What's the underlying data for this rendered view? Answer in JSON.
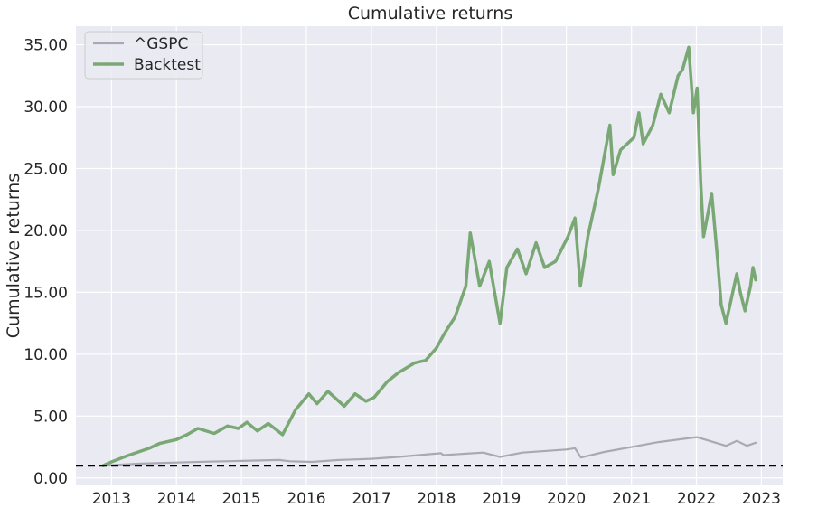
{
  "chart_data": {
    "type": "line",
    "title": "Cumulative returns",
    "xlabel": "",
    "ylabel": "Cumulative returns",
    "x_ticks": [
      "2013",
      "2014",
      "2015",
      "2016",
      "2017",
      "2018",
      "2019",
      "2020",
      "2021",
      "2022",
      "2023"
    ],
    "y_ticks": [
      "0.00",
      "5.00",
      "10.00",
      "15.00",
      "20.00",
      "25.00",
      "30.00",
      "35.00"
    ],
    "xlim": [
      "2012-06-15",
      "2023-05-01"
    ],
    "ylim": [
      -0.6,
      36.5
    ],
    "grid": true,
    "legend_position": "top-left",
    "reference_line": {
      "y": 1.0,
      "style": "dashed",
      "color": "#000000"
    },
    "series": [
      {
        "name": "^GSPC",
        "color": "#a9a9b3",
        "x": [
          "2012-11-15",
          "2013-06-01",
          "2014-01-01",
          "2014-07-01",
          "2015-01-01",
          "2015-08-01",
          "2015-10-01",
          "2016-02-01",
          "2016-07-01",
          "2017-01-01",
          "2017-06-01",
          "2018-01-26",
          "2018-02-09",
          "2018-09-20",
          "2018-12-24",
          "2019-04-30",
          "2019-12-31",
          "2020-02-19",
          "2020-03-23",
          "2020-08-01",
          "2021-01-01",
          "2021-06-01",
          "2022-01-03",
          "2022-06-16",
          "2022-08-16",
          "2022-10-12",
          "2022-11-30"
        ],
        "y": [
          1.0,
          1.15,
          1.25,
          1.32,
          1.38,
          1.45,
          1.35,
          1.3,
          1.45,
          1.55,
          1.7,
          2.0,
          1.85,
          2.05,
          1.7,
          2.05,
          2.3,
          2.4,
          1.65,
          2.1,
          2.5,
          2.9,
          3.3,
          2.6,
          3.0,
          2.6,
          2.85
        ]
      },
      {
        "name": "Backtest",
        "color": "#7aa874",
        "x": [
          "2012-11-15",
          "2013-01-01",
          "2013-04-01",
          "2013-06-01",
          "2013-08-01",
          "2013-10-01",
          "2014-01-01",
          "2014-03-01",
          "2014-05-01",
          "2014-08-01",
          "2014-10-15",
          "2014-12-15",
          "2015-02-01",
          "2015-04-01",
          "2015-06-01",
          "2015-08-20",
          "2015-11-01",
          "2016-01-15",
          "2016-03-01",
          "2016-05-01",
          "2016-08-01",
          "2016-10-01",
          "2016-12-01",
          "2017-01-15",
          "2017-04-01",
          "2017-06-01",
          "2017-09-01",
          "2017-11-01",
          "2018-01-01",
          "2018-02-08",
          "2018-03-01",
          "2018-04-15",
          "2018-06-15",
          "2018-07-10",
          "2018-09-01",
          "2018-10-25",
          "2018-12-24",
          "2019-02-01",
          "2019-04-01",
          "2019-05-20",
          "2019-07-15",
          "2019-09-01",
          "2019-11-01",
          "2020-01-10",
          "2020-02-19",
          "2020-03-20",
          "2020-05-01",
          "2020-07-01",
          "2020-09-02",
          "2020-09-20",
          "2020-11-01",
          "2021-01-15",
          "2021-02-12",
          "2021-03-08",
          "2021-05-01",
          "2021-06-15",
          "2021-08-01",
          "2021-09-20",
          "2021-10-15",
          "2021-11-19",
          "2021-12-15",
          "2022-01-05",
          "2022-01-25",
          "2022-02-10",
          "2022-03-28",
          "2022-05-01",
          "2022-05-20",
          "2022-06-16",
          "2022-08-16",
          "2022-09-05",
          "2022-10-01",
          "2022-11-01",
          "2022-11-15",
          "2022-11-30"
        ],
        "y": [
          1.0,
          1.3,
          1.8,
          2.1,
          2.4,
          2.8,
          3.1,
          3.5,
          4.0,
          3.6,
          4.2,
          4.0,
          4.5,
          3.8,
          4.4,
          3.5,
          5.5,
          6.8,
          6.0,
          7.0,
          5.8,
          6.8,
          6.2,
          6.5,
          7.8,
          8.5,
          9.3,
          9.5,
          10.5,
          11.5,
          12.0,
          13.0,
          15.5,
          19.8,
          15.5,
          17.5,
          12.5,
          17.0,
          18.5,
          16.5,
          19.0,
          17.0,
          17.5,
          19.5,
          21.0,
          15.5,
          19.5,
          23.5,
          28.5,
          24.5,
          26.5,
          27.5,
          29.5,
          27.0,
          28.5,
          31.0,
          29.5,
          32.5,
          33.0,
          34.8,
          29.5,
          31.5,
          24.0,
          19.5,
          23.0,
          17.5,
          14.0,
          12.5,
          16.5,
          15.0,
          13.5,
          15.5,
          17.0,
          16.0
        ]
      }
    ]
  }
}
